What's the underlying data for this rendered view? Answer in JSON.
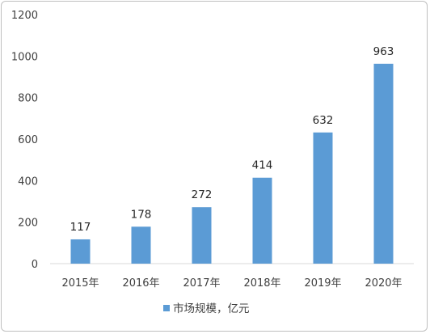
{
  "chart_data": {
    "type": "bar",
    "categories": [
      "2015年",
      "2016年",
      "2017年",
      "2018年",
      "2019年",
      "2020年"
    ],
    "series": [
      {
        "name": "市场规模，亿元",
        "values": [
          117,
          178,
          272,
          414,
          632,
          963
        ]
      }
    ],
    "data_labels": [
      "117",
      "178",
      "272",
      "414",
      "632",
      "963"
    ],
    "ylim": [
      0,
      1200
    ],
    "y_ticks": [
      "0",
      "200",
      "400",
      "600",
      "800",
      "1000",
      "1200"
    ],
    "grid": false,
    "legend_position": "bottom",
    "bar_color": "#5b9bd5"
  }
}
